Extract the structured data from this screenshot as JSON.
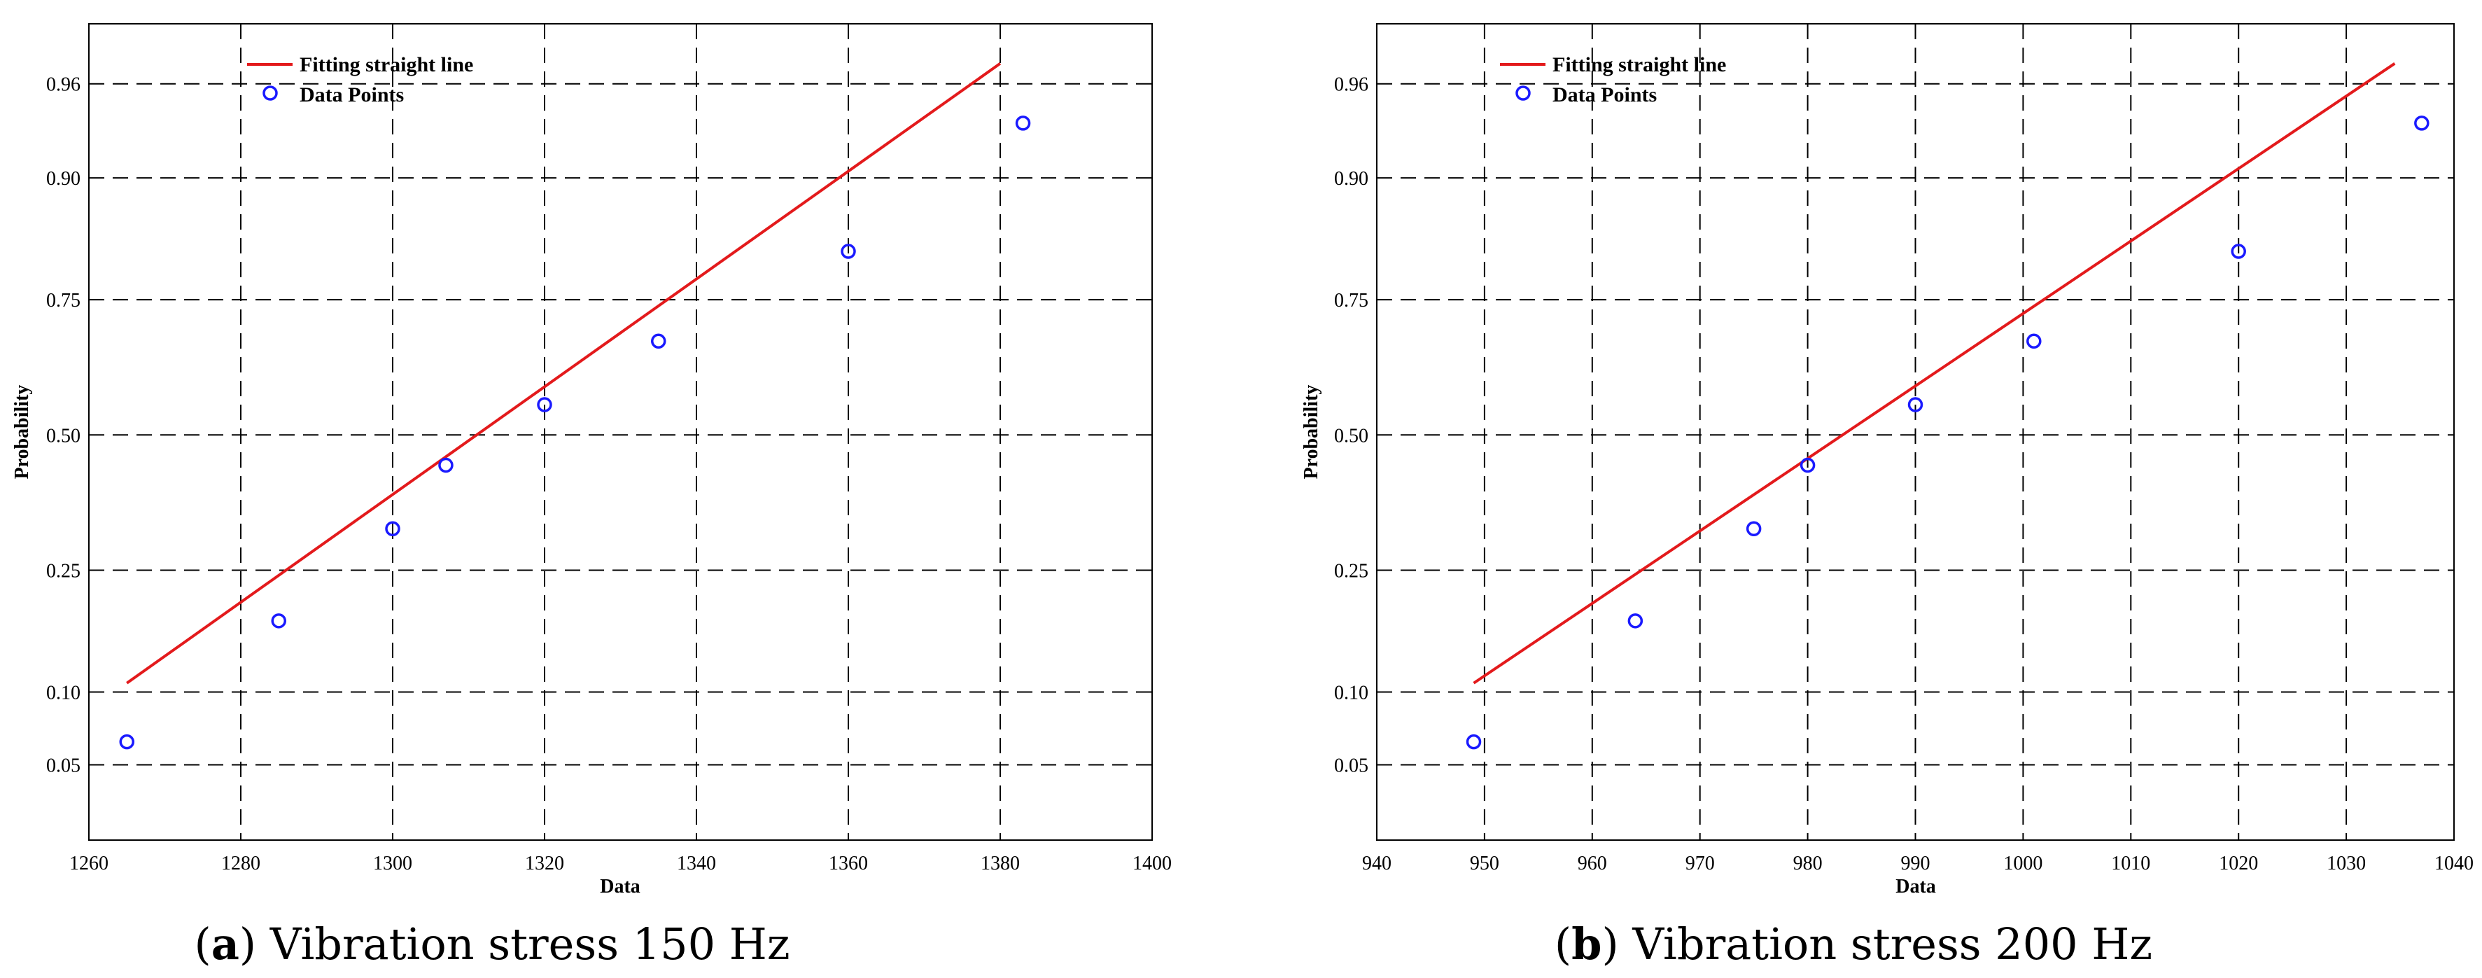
{
  "chart_data": [
    {
      "type": "scatter",
      "panel_label": "a",
      "title": "Vibration stress 150 Hz",
      "xlabel": "Data",
      "ylabel": "Probability",
      "xlim": [
        1260,
        1400
      ],
      "xticks": [
        1260,
        1280,
        1300,
        1320,
        1340,
        1360,
        1380,
        1400
      ],
      "yticks": [
        0.05,
        0.1,
        0.25,
        0.5,
        0.75,
        0.9,
        0.96
      ],
      "ytick_labels": [
        "0.05",
        "0.10",
        "0.25",
        "0.50",
        "0.75",
        "0.90",
        "0.96"
      ],
      "grid": true,
      "legend_position": "top-left",
      "series": [
        {
          "name": "Fitting straight line",
          "kind": "line",
          "color": "#e31a1c",
          "x": [
            1265,
            1380
          ],
          "y": [
            0.108,
            0.968
          ]
        },
        {
          "name": "Data Points",
          "kind": "scatter",
          "color": "#1a1aff",
          "x": [
            1265,
            1285,
            1300,
            1307,
            1320,
            1335,
            1360,
            1383
          ],
          "y": [
            0.063,
            0.177,
            0.32,
            0.44,
            0.56,
            0.68,
            0.82,
            0.94
          ]
        }
      ]
    },
    {
      "type": "scatter",
      "panel_label": "b",
      "title": "Vibration stress 200 Hz",
      "xlabel": "Data",
      "ylabel": "Probability",
      "xlim": [
        940,
        1040
      ],
      "xticks": [
        940,
        950,
        960,
        970,
        980,
        990,
        1000,
        1010,
        1020,
        1030,
        1040
      ],
      "yticks": [
        0.05,
        0.1,
        0.25,
        0.5,
        0.75,
        0.9,
        0.96
      ],
      "ytick_labels": [
        "0.05",
        "0.10",
        "0.25",
        "0.50",
        "0.75",
        "0.90",
        "0.96"
      ],
      "grid": true,
      "legend_position": "top-left",
      "series": [
        {
          "name": "Fitting straight line",
          "kind": "line",
          "color": "#e31a1c",
          "x": [
            949,
            1034.5
          ],
          "y": [
            0.108,
            0.968
          ]
        },
        {
          "name": "Data Points",
          "kind": "scatter",
          "color": "#1a1aff",
          "x": [
            949,
            964,
            975,
            980,
            990,
            1001,
            1020,
            1037
          ],
          "y": [
            0.063,
            0.177,
            0.32,
            0.44,
            0.56,
            0.68,
            0.82,
            0.94
          ]
        }
      ]
    }
  ]
}
